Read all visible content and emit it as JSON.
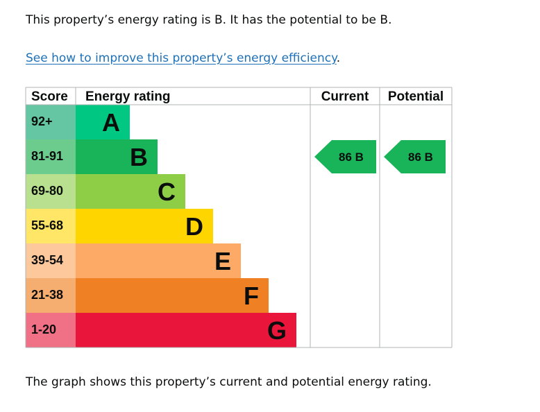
{
  "summary_text": "This property’s energy rating is B. It has the potential to be B.",
  "improve_link": "See how to improve this property’s energy efficiency",
  "improve_suffix": ".",
  "footnote": "The graph shows this property’s current and potential energy rating.",
  "chart_data": {
    "type": "bar",
    "headers": {
      "score": "Score",
      "rating": "Energy rating",
      "current": "Current",
      "potential": "Potential"
    },
    "bands": [
      {
        "letter": "A",
        "score": "92+",
        "color": "#00c781",
        "score_color": "#64c6a2"
      },
      {
        "letter": "B",
        "score": "81-91",
        "color": "#19b459",
        "score_color": "#6ccc8d"
      },
      {
        "letter": "C",
        "score": "69-80",
        "color": "#8dce46",
        "score_color": "#b8e08e"
      },
      {
        "letter": "D",
        "score": "55-68",
        "color": "#ffd500",
        "score_color": "#ffe666"
      },
      {
        "letter": "E",
        "score": "39-54",
        "color": "#fcaa65",
        "score_color": "#fdc99c"
      },
      {
        "letter": "F",
        "score": "21-38",
        "color": "#ef8023",
        "score_color": "#f5ad70"
      },
      {
        "letter": "G",
        "score": "1-20",
        "color": "#e9153b",
        "score_color": "#f07085"
      }
    ],
    "current": {
      "value": 86,
      "band": "B",
      "label": "86 B"
    },
    "potential": {
      "value": 86,
      "band": "B",
      "label": "86 B"
    }
  }
}
